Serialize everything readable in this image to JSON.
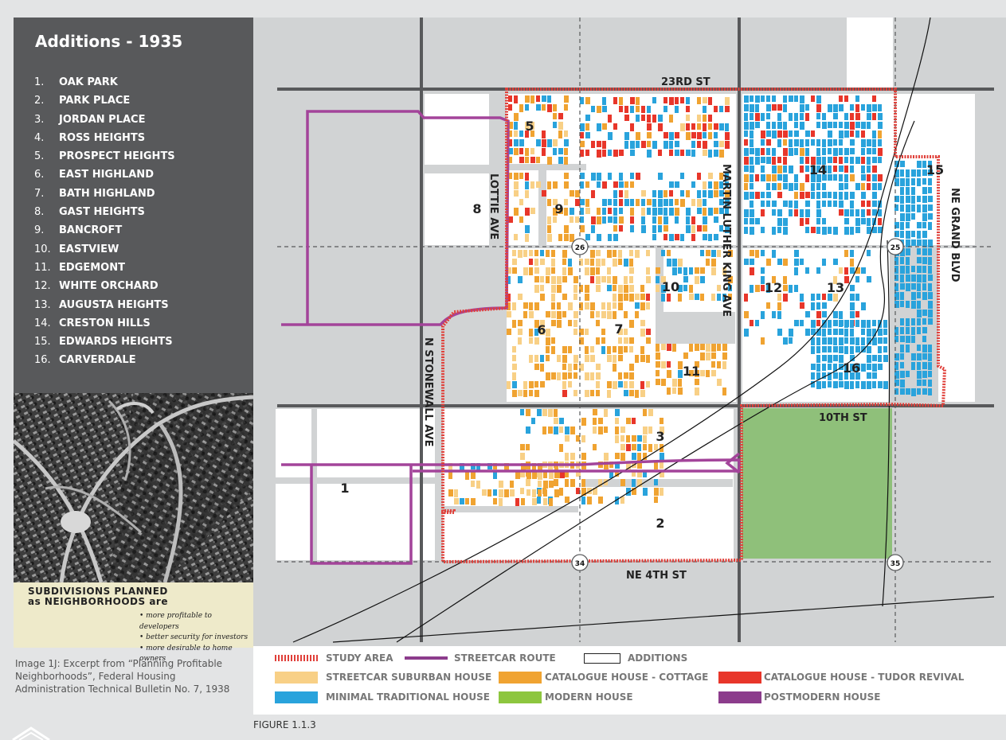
{
  "sidebar": {
    "title": "Additions - 1935",
    "items": [
      {
        "num": "1.",
        "label": "OAK PARK"
      },
      {
        "num": "2.",
        "label": "PARK PLACE"
      },
      {
        "num": "3.",
        "label": "JORDAN PLACE"
      },
      {
        "num": "4.",
        "label": "ROSS HEIGHTS"
      },
      {
        "num": "5.",
        "label": "PROSPECT HEIGHTS"
      },
      {
        "num": "6.",
        "label": "EAST HIGHLAND"
      },
      {
        "num": "7.",
        "label": "BATH HIGHLAND"
      },
      {
        "num": "8.",
        "label": "GAST HEIGHTS"
      },
      {
        "num": "9.",
        "label": "BANCROFT"
      },
      {
        "num": "10.",
        "label": "EASTVIEW"
      },
      {
        "num": "11.",
        "label": "EDGEMONT"
      },
      {
        "num": "12.",
        "label": "WHITE ORCHARD"
      },
      {
        "num": "13.",
        "label": "AUGUSTA HEIGHTS"
      },
      {
        "num": "14.",
        "label": "CRESTON HILLS"
      },
      {
        "num": "15.",
        "label": "EDWARDS HEIGHTS"
      },
      {
        "num": "16.",
        "label": "CARVERDALE"
      }
    ]
  },
  "inset_card": {
    "head_line1": "SUBDIVISIONS PLANNED",
    "head_line2": "as NEIGHBORHOODS are",
    "bullets": [
      "more profitable to developers",
      "better security for investors",
      "more desirable to home owners"
    ]
  },
  "image_caption": "Image 1J: Excerpt from “Planning Profitable Neighborhoods”, Federal Housing Administration Technical Bulletin No. 7, 1938",
  "figure_label": "FIGURE 1.1.3",
  "map": {
    "streets": {
      "s23rd": "23RD ST",
      "s10th": "10TH ST",
      "ne4th": "NE 4TH ST",
      "lottie": "LOTTIE AVE",
      "stonewall": "N STONEWALL AVE",
      "mlk": "MARTIN LUTHER KING AVE",
      "grand": "NE GRAND BLVD"
    },
    "routes": [
      "26",
      "25",
      "34",
      "35"
    ],
    "additions": [
      "1",
      "2",
      "3",
      "5",
      "6",
      "7",
      "8",
      "9",
      "10",
      "11",
      "12",
      "13",
      "14",
      "15",
      "16"
    ]
  },
  "legend": {
    "study_area": "STUDY AREA",
    "streetcar": "STREETCAR ROUTE",
    "additions": "ADDITIONS",
    "streetcar_house": "STREETCAR SUBURBAN HOUSE",
    "cottage": "CATALOGUE HOUSE - COTTAGE",
    "tudor": "CATALOGUE HOUSE - TUDOR REVIVAL",
    "minimal": "MINIMAL TRADITIONAL HOUSE",
    "modern": "MODERN HOUSE",
    "postmodern": "POSTMODERN HOUSE"
  },
  "colors": {
    "study_area": "#e0403a",
    "streetcar": "#a3449a",
    "streetcar_house": "#f8d086",
    "cottage": "#f0a331",
    "tudor": "#e8362a",
    "minimal": "#29a3dc",
    "modern": "#8fc07a",
    "modern_swatch": "#8dc63f",
    "postmodern": "#8c3c8c",
    "road": "#58595b"
  }
}
